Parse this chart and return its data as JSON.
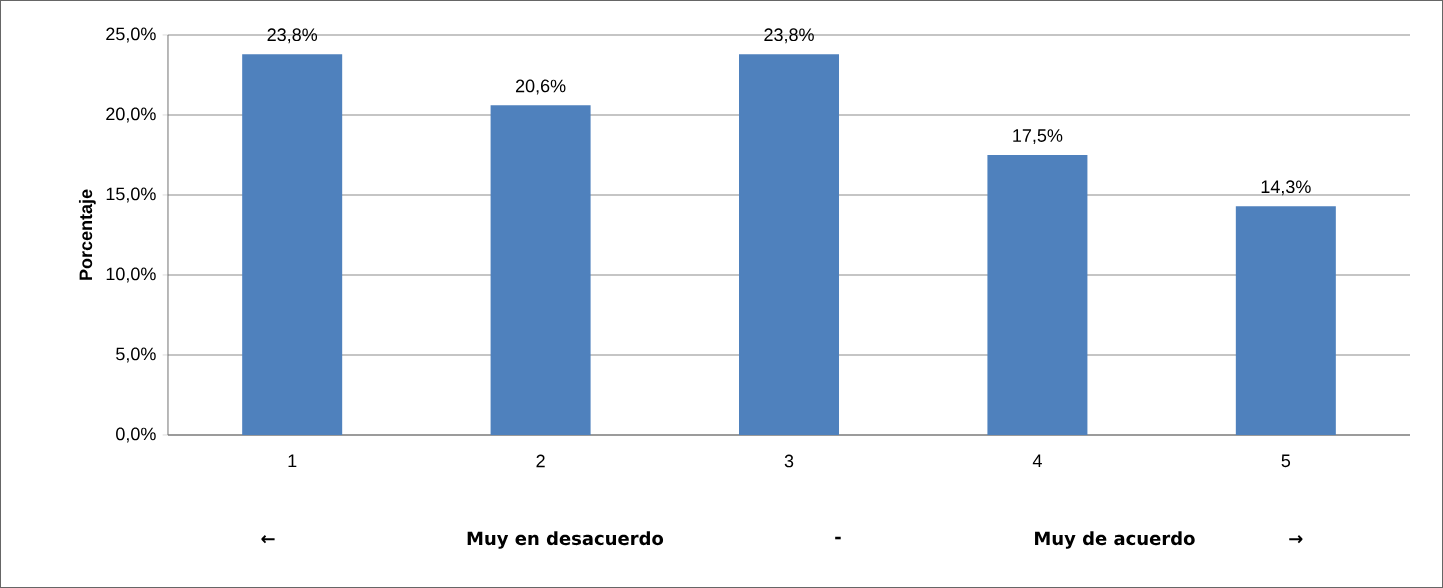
{
  "chart_data": {
    "type": "bar",
    "ylabel": "Porcentaje",
    "categories": [
      "1",
      "2",
      "3",
      "4",
      "5"
    ],
    "values": [
      23.8,
      20.6,
      23.8,
      17.5,
      14.3
    ],
    "value_labels": [
      "23,8%",
      "20,6%",
      "23,8%",
      "17,5%",
      "14,3%"
    ],
    "color": "#4f81bd",
    "ylim": [
      0,
      25
    ],
    "yticks": [
      {
        "value": 0,
        "label": "0,0%"
      },
      {
        "value": 5,
        "label": "5,0%"
      },
      {
        "value": 10,
        "label": "10,0%"
      },
      {
        "value": 15,
        "label": "15,0%"
      },
      {
        "value": 20,
        "label": "20,0%"
      },
      {
        "value": 25,
        "label": "25,0%"
      }
    ],
    "grid": "y",
    "annotations": [
      "←",
      "Muy en desacuerdo",
      "-",
      "Muy de acuerdo",
      "→"
    ]
  }
}
